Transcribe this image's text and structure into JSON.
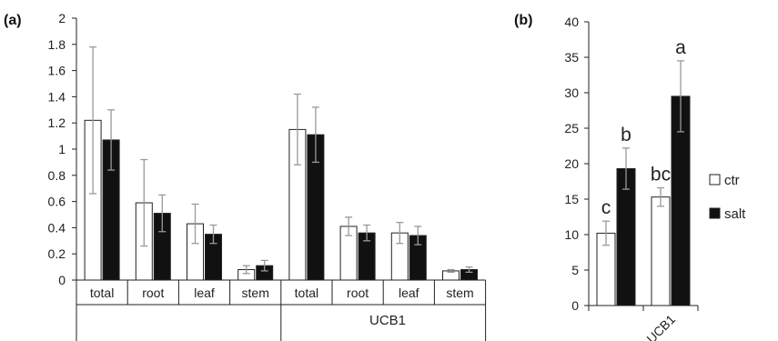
{
  "colors": {
    "ctr": "#ffffff",
    "salt": "#111111",
    "outline": "#222222",
    "error_bar": "#999999",
    "axis": "#222222"
  },
  "legend": {
    "ctr": "ctr",
    "salt": "salt"
  },
  "chart_data": [
    {
      "panel": "(a)",
      "type": "bar",
      "title": "",
      "xlabel": "",
      "ylabel": "",
      "ylim": [
        0,
        2
      ],
      "yticks": [
        "0",
        "0.2",
        "0.4",
        "0.6",
        "0.8",
        "1",
        "1.2",
        "1.4",
        "1.6",
        "1.8",
        "2"
      ],
      "categories": [
        "total",
        "root",
        "leaf",
        "stem",
        "total",
        "root",
        "leaf",
        "stem"
      ],
      "groups": [
        {
          "label": "",
          "categories": [
            0,
            1,
            2,
            3
          ]
        },
        {
          "label": "UCB1",
          "categories": [
            4,
            5,
            6,
            7
          ]
        }
      ],
      "series": [
        {
          "name": "ctr",
          "values": [
            1.22,
            0.59,
            0.43,
            0.08,
            1.15,
            0.41,
            0.36,
            0.07
          ],
          "errors": [
            0.56,
            0.33,
            0.15,
            0.03,
            0.27,
            0.07,
            0.08,
            0.01
          ]
        },
        {
          "name": "salt",
          "values": [
            1.07,
            0.51,
            0.35,
            0.11,
            1.11,
            0.36,
            0.34,
            0.08
          ],
          "errors": [
            0.23,
            0.14,
            0.07,
            0.04,
            0.21,
            0.06,
            0.07,
            0.02
          ]
        }
      ]
    },
    {
      "panel": "(b)",
      "type": "bar",
      "title": "",
      "xlabel": "",
      "ylabel": "",
      "ylim": [
        0,
        40
      ],
      "yticks": [
        "0",
        "5",
        "10",
        "15",
        "20",
        "25",
        "30",
        "35",
        "40"
      ],
      "categories": [
        "",
        "UCB1"
      ],
      "series": [
        {
          "name": "ctr",
          "values": [
            10.2,
            15.3
          ],
          "errors": [
            1.7,
            1.3
          ],
          "letters": [
            "c",
            "bc"
          ]
        },
        {
          "name": "salt",
          "values": [
            19.3,
            29.5
          ],
          "errors": [
            2.9,
            5.0
          ],
          "letters": [
            "b",
            "a"
          ]
        }
      ]
    }
  ]
}
